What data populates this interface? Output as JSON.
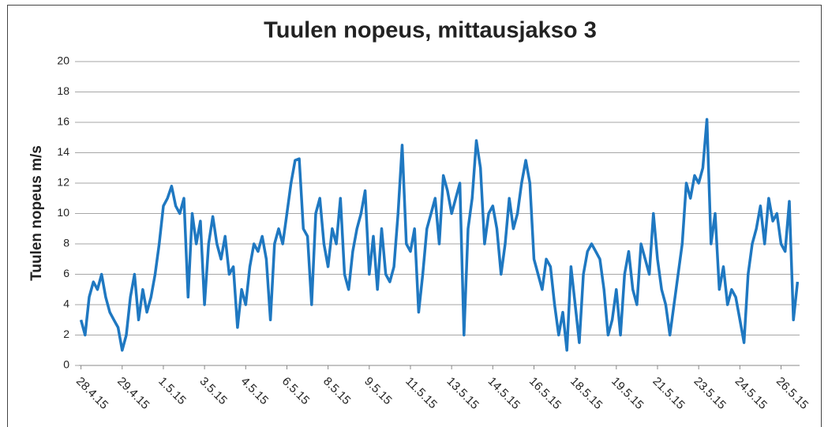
{
  "chart_data": {
    "type": "line",
    "title": "Tuulen nopeus, mittausjakso 3",
    "y_label": "Tuulen nopeus m/s",
    "categories": [
      "28.4.15",
      null,
      null,
      null,
      null,
      null,
      null,
      null,
      null,
      null,
      "29.4.15",
      null,
      null,
      null,
      null,
      null,
      null,
      null,
      null,
      null,
      "1.5.15",
      null,
      null,
      null,
      null,
      null,
      null,
      null,
      null,
      null,
      "3.5.15",
      null,
      null,
      null,
      null,
      null,
      null,
      null,
      null,
      null,
      "4.5.15",
      null,
      null,
      null,
      null,
      null,
      null,
      null,
      null,
      null,
      "6.5.15",
      null,
      null,
      null,
      null,
      null,
      null,
      null,
      null,
      null,
      "8.5.15",
      null,
      null,
      null,
      null,
      null,
      null,
      null,
      null,
      null,
      "9.5.15",
      null,
      null,
      null,
      null,
      null,
      null,
      null,
      null,
      null,
      "11.5.15",
      null,
      null,
      null,
      null,
      null,
      null,
      null,
      null,
      null,
      "13.5.15",
      null,
      null,
      null,
      null,
      null,
      null,
      null,
      null,
      null,
      "14.5.15",
      null,
      null,
      null,
      null,
      null,
      null,
      null,
      null,
      null,
      "16.5.15",
      null,
      null,
      null,
      null,
      null,
      null,
      null,
      null,
      null,
      "18.5.15",
      null,
      null,
      null,
      null,
      null,
      null,
      null,
      null,
      null,
      "19.5.15",
      null,
      null,
      null,
      null,
      null,
      null,
      null,
      null,
      null,
      "21.5.15",
      null,
      null,
      null,
      null,
      null,
      null,
      null,
      null,
      null,
      "23.5.15",
      null,
      null,
      null,
      null,
      null,
      null,
      null,
      null,
      null,
      "24.5.15",
      null,
      null,
      null,
      null,
      null,
      null,
      null,
      null,
      null,
      "26.5.15",
      null,
      null,
      null,
      null
    ],
    "values": [
      3,
      2,
      4.5,
      5.5,
      5,
      6,
      4.5,
      3.5,
      3,
      2.5,
      1,
      2,
      4.5,
      6,
      3,
      5,
      3.5,
      4.5,
      6,
      8,
      10.5,
      11,
      11.8,
      10.5,
      10,
      11,
      4.5,
      10,
      8,
      9.5,
      4,
      8,
      9.8,
      8,
      7,
      8.5,
      6,
      6.5,
      2.5,
      5,
      4,
      6.5,
      8,
      7.5,
      8.5,
      7,
      3,
      8,
      9,
      8,
      10,
      12,
      13.5,
      13.6,
      9,
      8.5,
      4,
      10,
      11,
      8,
      6.5,
      9,
      8,
      11,
      6,
      5,
      7.5,
      9,
      10,
      11.5,
      6,
      8.5,
      5,
      9,
      6,
      5.5,
      6.5,
      10,
      14.5,
      8,
      7.5,
      9,
      3.5,
      6,
      9,
      10,
      11,
      8,
      12.5,
      11.5,
      10,
      11,
      12,
      2,
      9,
      11,
      14.8,
      13,
      8,
      10,
      10.5,
      9,
      6,
      8,
      11,
      9,
      10,
      12,
      13.5,
      12,
      7,
      6,
      5,
      7,
      6.5,
      4,
      2,
      3.5,
      1,
      6.5,
      4,
      1.5,
      6,
      7.5,
      8,
      7.5,
      7,
      5,
      2,
      3,
      5,
      2,
      6,
      7.5,
      5,
      4,
      8,
      7,
      6,
      10,
      7,
      5,
      4,
      2,
      4,
      6,
      8,
      12,
      11,
      12.5,
      12,
      13,
      16.2,
      8,
      10,
      5,
      6.5,
      4,
      5,
      4.5,
      3,
      1.5,
      6,
      8,
      9,
      10.5,
      8,
      11,
      9.5,
      10,
      8,
      7.5,
      10.8,
      3,
      5.5
    ],
    "color": "#1f78c1",
    "ylim": [
      0,
      20
    ],
    "yticks": [
      0,
      2,
      4,
      6,
      8,
      10,
      12,
      14,
      16,
      18,
      20
    ],
    "grid": true
  }
}
